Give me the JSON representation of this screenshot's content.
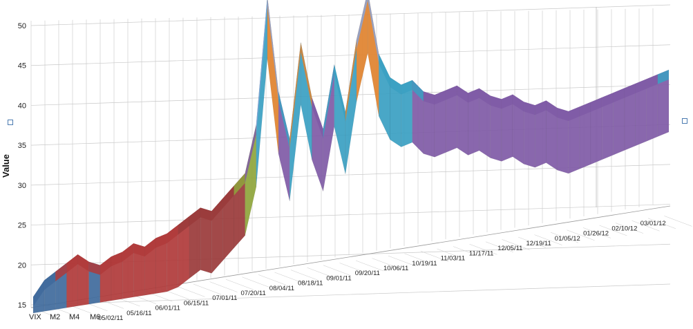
{
  "chart_data": {
    "type": "area",
    "subtype": "3d-surface",
    "title": "",
    "ylabel": "Value",
    "zlim": [
      15,
      50
    ],
    "z_ticks": [
      15,
      20,
      25,
      30,
      35,
      40,
      45,
      50
    ],
    "series_labels": [
      "VIX",
      "M2",
      "M4",
      "M6"
    ],
    "date_labels": [
      "05/02/11",
      "05/16/11",
      "06/01/11",
      "06/15/11",
      "07/01/11",
      "07/20/11",
      "08/04/11",
      "08/18/11",
      "09/01/11",
      "09/20/11",
      "10/06/11",
      "10/19/11",
      "11/03/11",
      "11/17/11",
      "12/05/11",
      "12/19/11",
      "01/05/12",
      "01/26/12",
      "02/10/12",
      "03/01/12"
    ],
    "color_bands": [
      {
        "range": [
          15,
          20
        ],
        "color": "#3f6a9c"
      },
      {
        "range": [
          20,
          25
        ],
        "color": "#b03a3a"
      },
      {
        "range": [
          25,
          30
        ],
        "color": "#9a3a3a"
      },
      {
        "range": [
          30,
          35
        ],
        "color": "#8ea53b"
      },
      {
        "range": [
          35,
          40
        ],
        "color": "#7f5aa6"
      },
      {
        "range": [
          40,
          45
        ],
        "color": "#3aa0c2"
      },
      {
        "range": [
          45,
          50
        ],
        "color": "#e0822e"
      },
      {
        "range": [
          50,
          55
        ],
        "color": "#8aa3d6"
      }
    ],
    "grid": true,
    "legend": "none"
  },
  "colors": {
    "gridline": "#c8c8c8",
    "handle_border": "#4a7ab0"
  }
}
